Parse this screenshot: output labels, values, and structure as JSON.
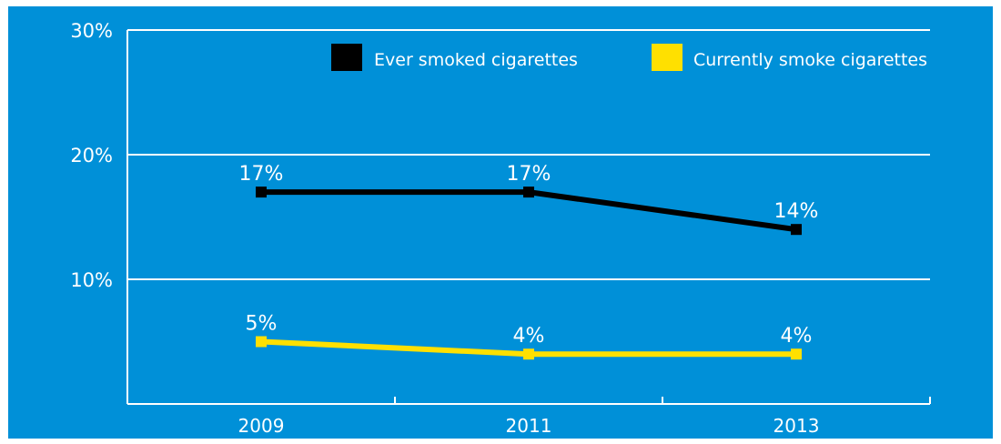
{
  "colors": {
    "background": "#0090D8",
    "axis": "#ffffff",
    "text": "#ffffff",
    "series_black": "#000000",
    "series_yellow": "#FFE000"
  },
  "chart_data": {
    "type": "line",
    "title": "",
    "xlabel": "",
    "ylabel": "",
    "categories": [
      "2009",
      "2011",
      "2013"
    ],
    "ylim": [
      0,
      30
    ],
    "yticks": [
      "10%",
      "20%",
      "30%"
    ],
    "ytick_values": [
      10,
      20,
      30
    ],
    "grid": true,
    "legend_position": "top-right",
    "series": [
      {
        "name": "Ever smoked cigarettes",
        "color": "#000000",
        "values": [
          17,
          17,
          14
        ],
        "labels": [
          "17%",
          "17%",
          "14%"
        ]
      },
      {
        "name": "Currently smoke cigarettes",
        "color": "#FFE000",
        "values": [
          5,
          4,
          4
        ],
        "labels": [
          "5%",
          "4%",
          "4%"
        ]
      }
    ]
  }
}
